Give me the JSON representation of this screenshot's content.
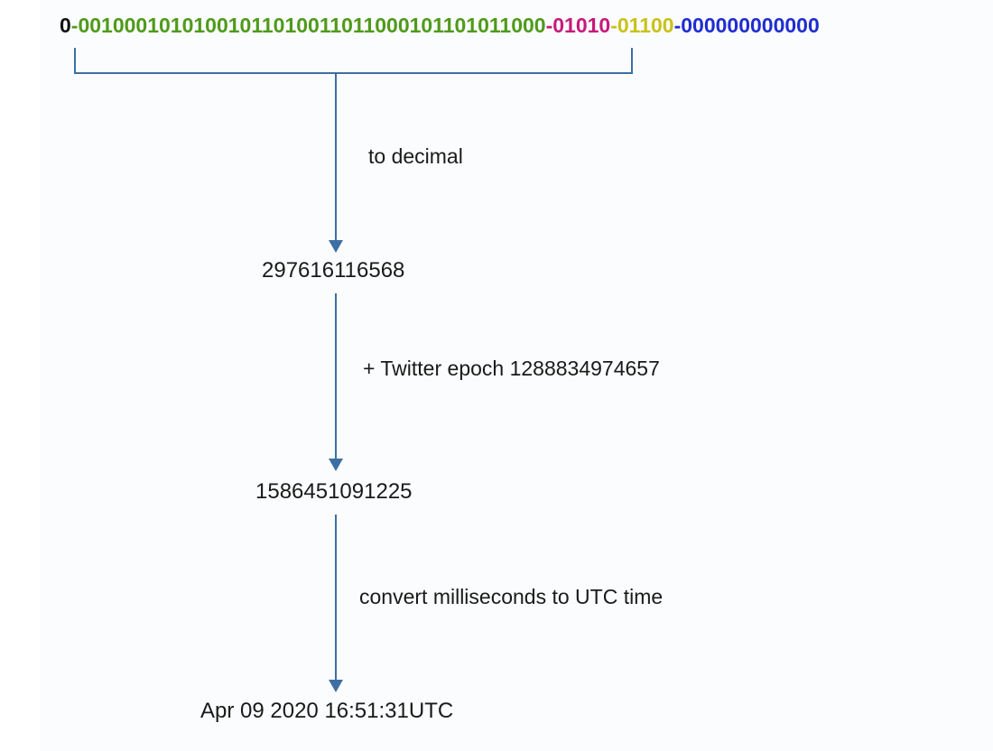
{
  "colors": {
    "sign": "#111111",
    "timestamp": "#4f9a1b",
    "datacenter": "#c8197a",
    "machine": "#c9c21a",
    "sequence": "#1f2dd0",
    "separator_sign": "#4f9a1b",
    "separator_dc": "#c8197a",
    "separator_machine": "#c9c21a",
    "separator_seq": "#1f2dd0",
    "arrow": "#3d6fa3",
    "bracket": "#3d6fa3",
    "text": "#1a1a1a"
  },
  "binary_id": {
    "sign_bit": "0",
    "timestamp_bits": "00100010101001011010011011000101101011000",
    "datacenter_bits": "01010",
    "machine_bits": "01100",
    "sequence_bits": "000000000000",
    "separator": "-"
  },
  "steps": [
    {
      "label": "to decimal"
    },
    {
      "label": "+ Twitter epoch 1288834974657"
    },
    {
      "label": "convert milliseconds to UTC time"
    }
  ],
  "values": {
    "timestamp_decimal": "297616116568",
    "epoch_adjusted": "1586451091225",
    "utc_time": "Apr 09 2020 16:51:31UTC"
  }
}
